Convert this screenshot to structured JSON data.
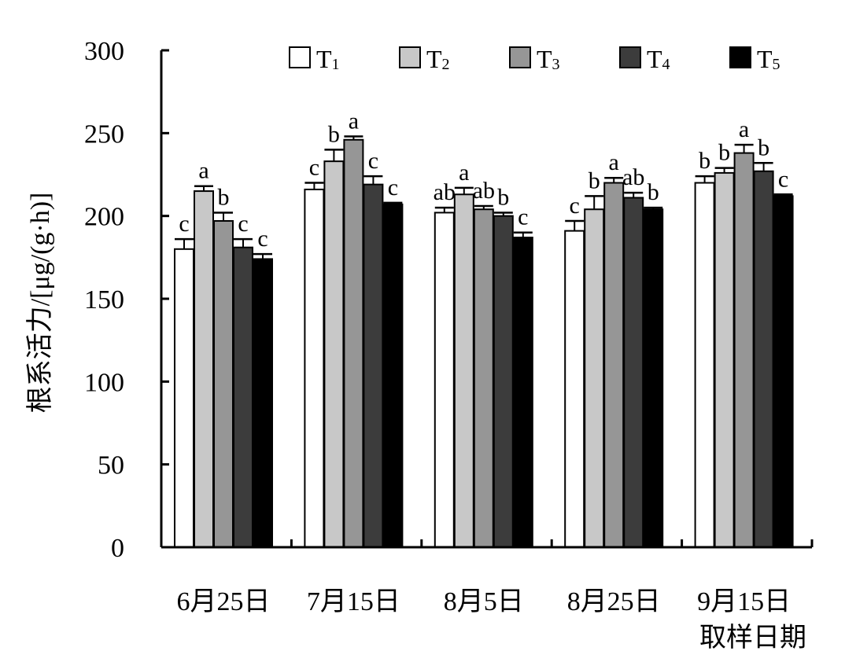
{
  "chart_data": {
    "type": "bar",
    "title": "",
    "xlabel": "取样日期",
    "ylabel": "根系活力/[μg/(g·h)]",
    "ylim": [
      0,
      300
    ],
    "yticks": [
      0,
      50,
      100,
      150,
      200,
      250,
      300
    ],
    "grid": false,
    "legend_placement": "top",
    "categories": [
      "6月25日",
      "7月15日",
      "8月5日",
      "8月25日",
      "9月15日"
    ],
    "series": [
      {
        "name": "T",
        "sub": "1",
        "color": "#ffffff",
        "values": [
          180,
          216,
          202,
          191,
          220
        ],
        "errors": [
          6,
          4,
          3,
          6,
          4
        ],
        "labels": [
          "c",
          "c",
          "ab",
          "c",
          "b"
        ]
      },
      {
        "name": "T",
        "sub": "2",
        "color": "#c8c8c8",
        "values": [
          215,
          233,
          213,
          204,
          226
        ],
        "errors": [
          3,
          7,
          4,
          8,
          3
        ],
        "labels": [
          "a",
          "b",
          "a",
          "b",
          "b"
        ]
      },
      {
        "name": "T",
        "sub": "3",
        "color": "#969696",
        "values": [
          197,
          246,
          204,
          220,
          238
        ],
        "errors": [
          5,
          2,
          2,
          3,
          5
        ],
        "labels": [
          "b",
          "a",
          "ab",
          "a",
          "a"
        ]
      },
      {
        "name": "T",
        "sub": "4",
        "color": "#3c3c3c",
        "values": [
          181,
          219,
          200,
          211,
          227
        ],
        "errors": [
          5,
          5,
          2,
          3,
          5
        ],
        "labels": [
          "c",
          "c",
          "b",
          "ab",
          "b"
        ]
      },
      {
        "name": "T",
        "sub": "5",
        "color": "#000000",
        "values": [
          174,
          207,
          187,
          204,
          212
        ],
        "errors": [
          3,
          1,
          3,
          1,
          1
        ],
        "labels": [
          "c",
          "c",
          "c",
          "b",
          "c"
        ]
      }
    ]
  }
}
